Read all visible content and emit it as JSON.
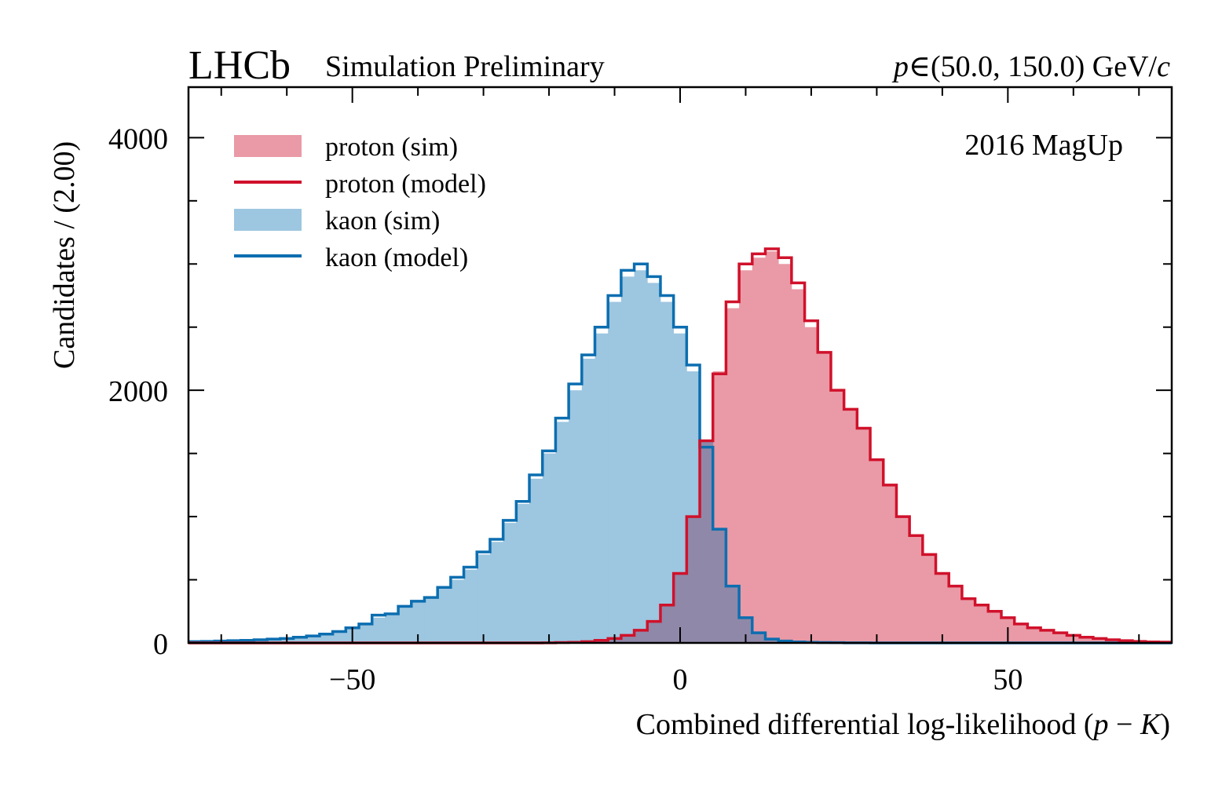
{
  "header": {
    "experiment": "LHCb",
    "subtitle": "Simulation Preliminary",
    "range_prefix": "p",
    "range_symbol": "∈",
    "range_values": "(50.0, 150.0) GeV/",
    "range_suffix": "c"
  },
  "annotation": "2016 MagUp",
  "colors": {
    "proton_fill": "#e99aa6",
    "proton_line": "#d0112b",
    "kaon_fill": "#9dc6e0",
    "kaon_line": "#0c6eb0",
    "overlap_fill": "#8f88a8"
  },
  "chart_data": {
    "type": "histogram",
    "xlabel": "Combined differential log-likelihood (p − K)",
    "xlabel_parts": {
      "pre": "Combined differential log-likelihood (",
      "p": "p",
      "minus": " − ",
      "k": "K",
      "post": ")"
    },
    "ylabel": "Candidates / (2.00)",
    "xlim": [
      -75,
      75
    ],
    "ylim": [
      0,
      4400
    ],
    "bin_width": 2,
    "x_ticks": [
      -50,
      0,
      50
    ],
    "x_tick_labels": [
      "−50",
      "0",
      "50"
    ],
    "y_ticks": [
      0,
      2000,
      4000
    ],
    "y_tick_labels": [
      "0",
      "2000",
      "4000"
    ],
    "legend_position": "top-left",
    "bins_start": -75,
    "series": [
      {
        "name": "kaon (sim)",
        "kind": "filled",
        "values": [
          10,
          12,
          15,
          18,
          20,
          25,
          30,
          35,
          45,
          55,
          70,
          90,
          120,
          150,
          200,
          220,
          280,
          320,
          350,
          430,
          500,
          580,
          700,
          800,
          950,
          1100,
          1300,
          1500,
          1750,
          2000,
          2250,
          2450,
          2700,
          2900,
          2950,
          2850,
          2700,
          2450,
          2150,
          1600,
          900,
          450,
          200,
          80,
          30,
          15,
          8,
          5,
          3,
          2,
          1,
          1,
          0,
          0,
          0,
          0,
          0,
          0,
          0,
          0,
          0,
          0,
          0,
          0,
          0,
          0,
          0,
          0,
          0,
          0,
          0,
          0,
          0,
          0,
          0
        ]
      },
      {
        "name": "kaon (model)",
        "kind": "line",
        "values": [
          10,
          12,
          15,
          18,
          20,
          25,
          30,
          35,
          45,
          55,
          70,
          90,
          120,
          150,
          220,
          230,
          290,
          330,
          360,
          440,
          520,
          600,
          720,
          820,
          970,
          1120,
          1330,
          1520,
          1780,
          2050,
          2280,
          2500,
          2750,
          2950,
          3000,
          2900,
          2750,
          2500,
          2200,
          1550,
          900,
          450,
          200,
          80,
          30,
          15,
          8,
          5,
          3,
          2,
          1,
          1,
          0,
          0,
          0,
          0,
          0,
          0,
          0,
          0,
          0,
          0,
          0,
          0,
          0,
          0,
          0,
          0,
          0,
          0,
          0,
          0,
          0,
          0,
          0
        ]
      },
      {
        "name": "proton (sim)",
        "kind": "filled",
        "values": [
          0,
          0,
          0,
          0,
          0,
          0,
          0,
          0,
          0,
          0,
          0,
          0,
          0,
          0,
          0,
          0,
          0,
          0,
          0,
          0,
          0,
          0,
          0,
          0,
          0,
          0,
          0,
          1,
          3,
          5,
          10,
          20,
          35,
          60,
          100,
          170,
          300,
          550,
          1000,
          1600,
          2150,
          2650,
          2950,
          3050,
          3100,
          3000,
          2800,
          2500,
          2300,
          2000,
          1850,
          1700,
          1450,
          1250,
          1000,
          850,
          700,
          550,
          450,
          350,
          300,
          250,
          200,
          150,
          120,
          100,
          80,
          60,
          45,
          35,
          25,
          18,
          12,
          8,
          6
        ]
      },
      {
        "name": "proton (model)",
        "kind": "line",
        "values": [
          0,
          0,
          0,
          0,
          0,
          0,
          0,
          0,
          0,
          0,
          0,
          0,
          0,
          0,
          0,
          0,
          0,
          0,
          0,
          0,
          0,
          0,
          0,
          0,
          0,
          0,
          0,
          1,
          3,
          5,
          10,
          20,
          35,
          60,
          100,
          170,
          300,
          550,
          1000,
          1600,
          2130,
          2700,
          3000,
          3080,
          3120,
          3050,
          2850,
          2550,
          2300,
          2000,
          1850,
          1700,
          1450,
          1250,
          1000,
          850,
          700,
          550,
          450,
          350,
          300,
          250,
          200,
          150,
          120,
          100,
          80,
          60,
          45,
          35,
          25,
          18,
          12,
          8,
          6
        ]
      }
    ]
  }
}
